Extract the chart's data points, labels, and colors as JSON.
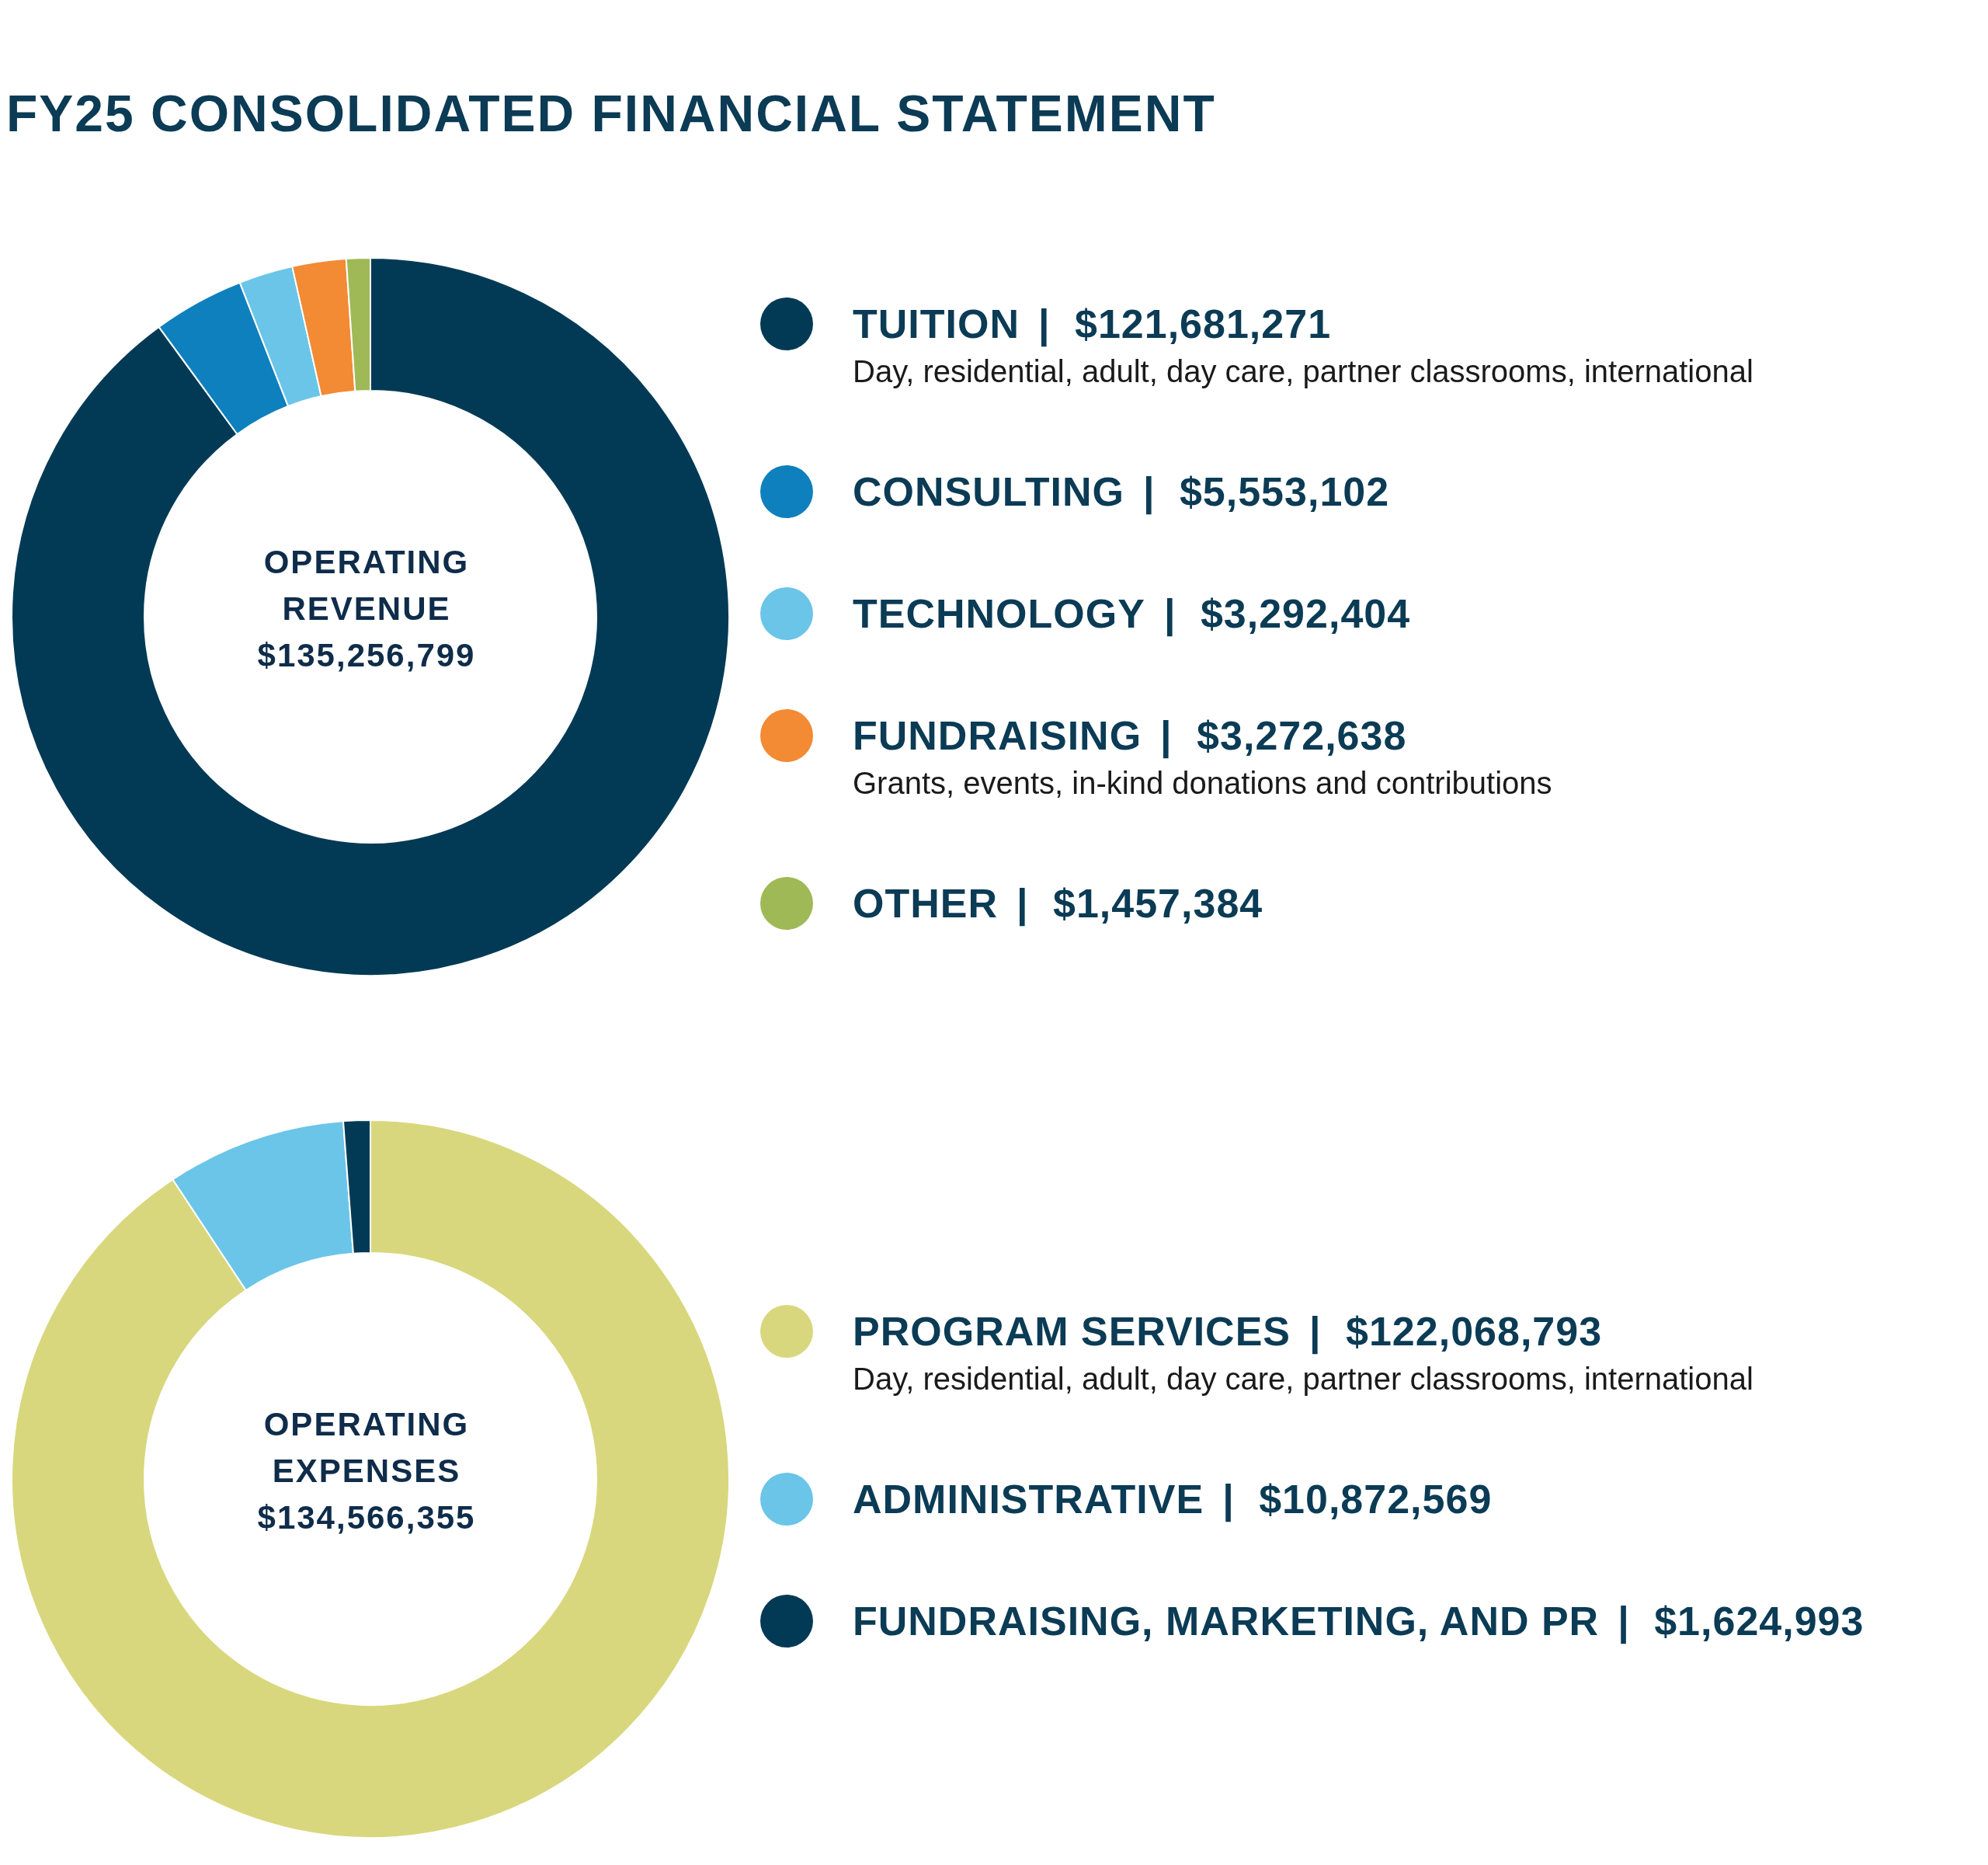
{
  "chart_data": [
    {
      "type": "donut",
      "title": "FY25 CONSOLIDATED FINANCIAL STATEMENT",
      "categories": [
        "TUITION",
        "CONSULTING",
        "TECHNOLOGY",
        "FUNDRAISING",
        "OTHER"
      ],
      "values": [
        121681271,
        5553102,
        3292404,
        3272638,
        1457384
      ],
      "value_labels": [
        "| $121,681,271",
        "| $5,553,102",
        "| $3,292,404",
        "| $3,272,638",
        "| $1,457,384"
      ],
      "colors": [
        "#023a55",
        "#0e80bd",
        "#6ac5e8",
        "#f38a34",
        "#9fb956"
      ],
      "legend": "right",
      "annotations": [
        {
          "text": "Day, residential, adult, day care, partner classrooms, international",
          "x": "TUITION"
        },
        {
          "text": "Grants, events, in-kind donations and contributions",
          "x": "FUNDRAISING"
        },
        "OPERATING REVENUE",
        "$135,256,799"
      ]
    },
    {
      "type": "donut",
      "categories": [
        "PROGRAM SERVICES",
        "ADMINISTRATIVE",
        "FUNDRAISING, MARKETING, AND PR"
      ],
      "values": [
        122068793,
        10872569,
        1624993
      ],
      "value_labels": [
        "| $122,068,793",
        "| $10,872,569",
        "| $1,624,993"
      ],
      "colors": [
        "#d8d77d",
        "#6ac5e8",
        "#023a55"
      ],
      "legend": "right",
      "annotations": [
        {
          "text": "Day, residential, adult, day care, partner classrooms, international",
          "x": "PROGRAM SERVICES"
        },
        "OPERATING EXPENSES",
        "$134,566,355"
      ]
    }
  ]
}
